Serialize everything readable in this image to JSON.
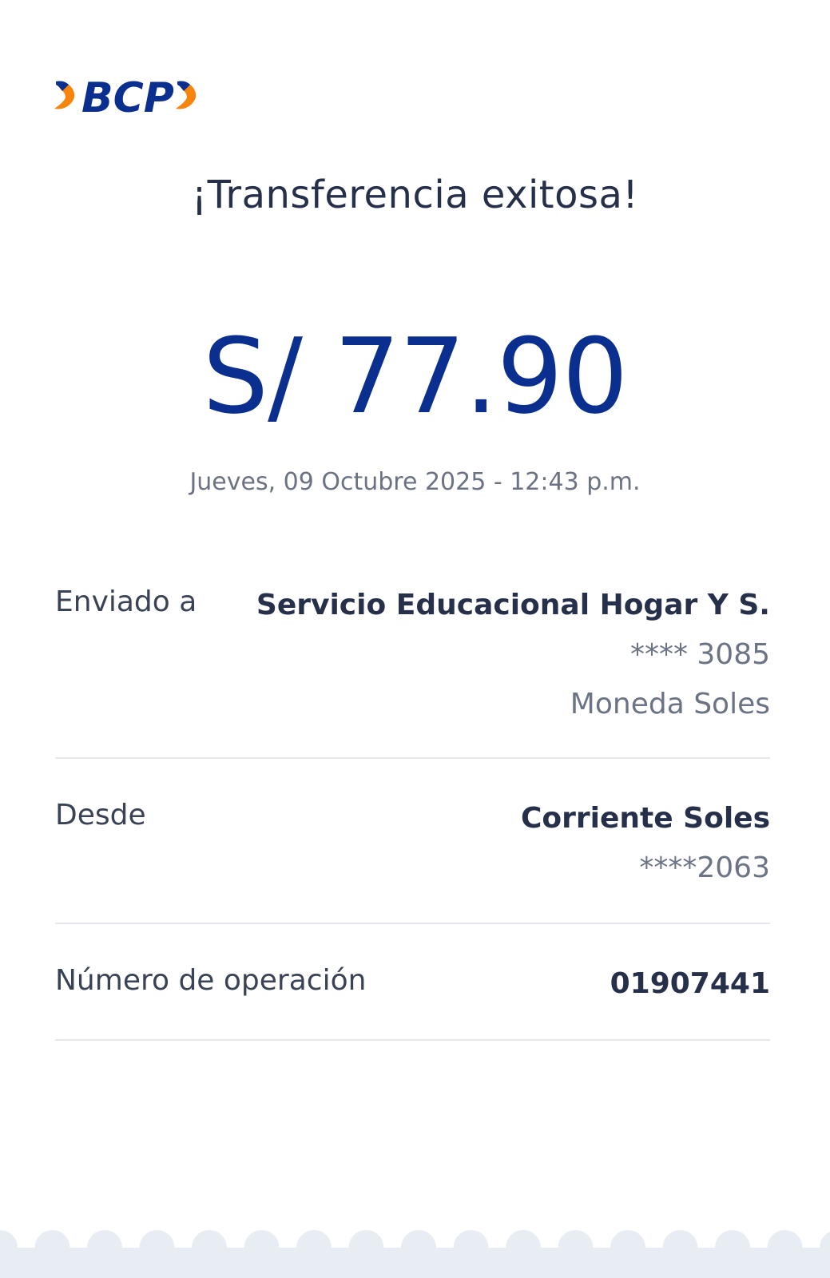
{
  "brand": {
    "logo_text": "BCP",
    "colors": {
      "primary": "#0a2f8f",
      "accent": "#f7850d"
    }
  },
  "title": "¡Transferencia exitosa!",
  "amount": "S/ 77.90",
  "datetime": "Jueves, 09 Octubre 2025 - 12:43 p.m.",
  "details": {
    "sent_to": {
      "label": "Enviado a",
      "name": "Servicio Educacional Hogar Y S.",
      "account": "**** 3085",
      "currency": "Moneda Soles"
    },
    "from": {
      "label": "Desde",
      "account_type": "Corriente Soles",
      "account": "****2063"
    },
    "operation": {
      "label": "Número de operación",
      "number": "01907441"
    }
  }
}
